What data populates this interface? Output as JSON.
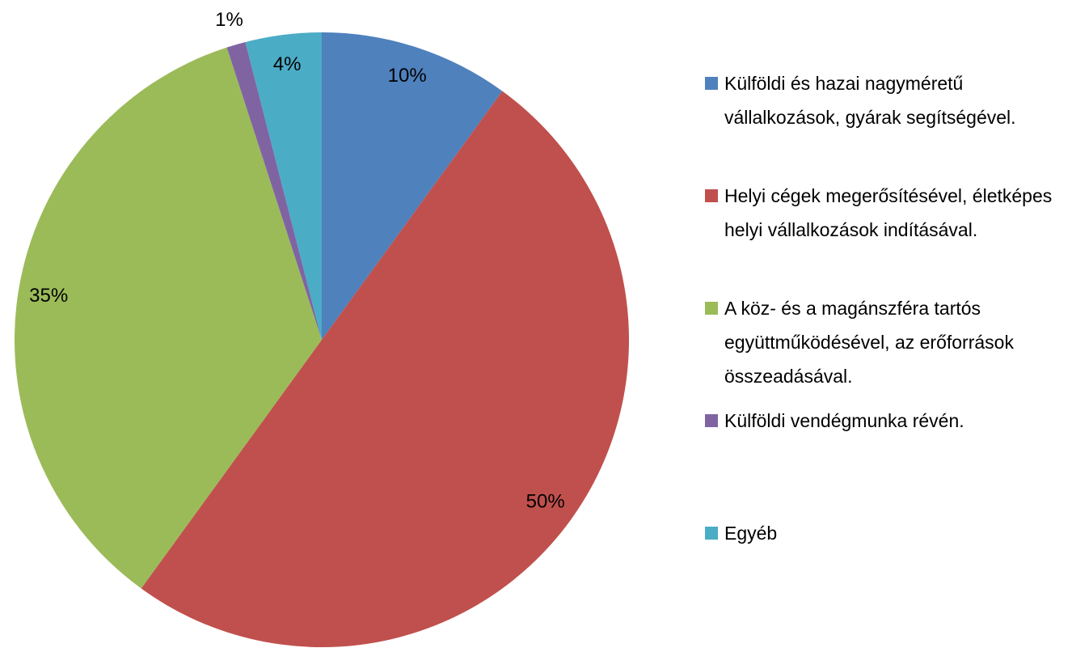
{
  "chart_data": {
    "type": "pie",
    "categories": [
      "Külföldi és hazai nagyméretű vállalkozások, gyárak segítségével.",
      "Helyi cégek megerősítésével, életképes helyi vállalkozások indításával.",
      "A köz- és a magánszféra tartós együttműködésével, az erőforrások összeadásával.",
      "Külföldi vendégmunka révén.",
      "Egyéb"
    ],
    "values": [
      10,
      50,
      35,
      1,
      4
    ],
    "value_labels": [
      "10%",
      "50%",
      "35%",
      "1%",
      "4%"
    ],
    "colors": [
      "#4f81bd",
      "#c0504d",
      "#9bbb59",
      "#8064a2",
      "#4bacc6"
    ],
    "legend": "right"
  }
}
